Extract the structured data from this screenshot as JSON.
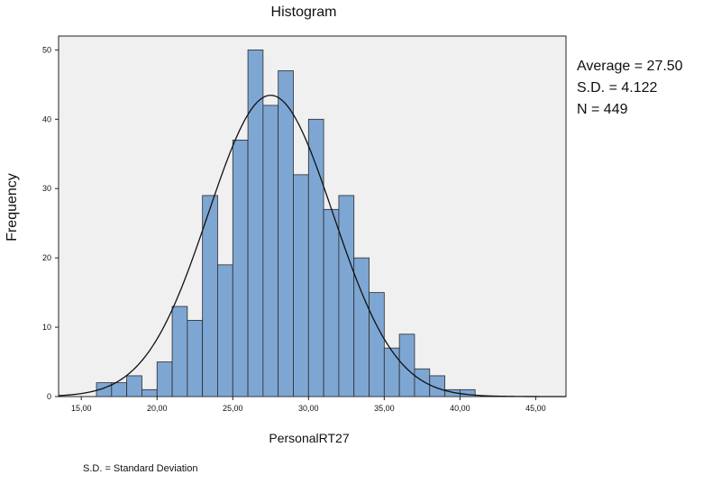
{
  "chart_data": {
    "type": "bar",
    "title": "Histogram",
    "xlabel": "PersonalRT27",
    "ylabel": "Frequency",
    "xlim": [
      13.5,
      47.0
    ],
    "ylim": [
      0,
      52
    ],
    "x_ticks": [
      {
        "value": 15,
        "label": "15,00"
      },
      {
        "value": 20,
        "label": "20,00"
      },
      {
        "value": 25,
        "label": "25,00"
      },
      {
        "value": 30,
        "label": "30,00"
      },
      {
        "value": 35,
        "label": "35,00"
      },
      {
        "value": 40,
        "label": "40,00"
      },
      {
        "value": 45,
        "label": "45,00"
      }
    ],
    "y_ticks": [
      0,
      10,
      20,
      30,
      40,
      50
    ],
    "bin_width": 1,
    "bin_starts": [
      16,
      17,
      18,
      19,
      20,
      21,
      22,
      23,
      24,
      25,
      26,
      27,
      28,
      29,
      30,
      31,
      32,
      33,
      34,
      35,
      36,
      37,
      38,
      39,
      40
    ],
    "values": [
      2,
      2,
      3,
      1,
      5,
      13,
      11,
      29,
      19,
      37,
      50,
      42,
      47,
      32,
      40,
      27,
      29,
      20,
      15,
      7,
      9,
      4,
      3,
      1,
      1
    ],
    "normal_curve": {
      "mean": 27.5,
      "sd": 4.122,
      "n": 449
    },
    "bar_color": "#7ea6d3",
    "plot_background": "#f0f0f0",
    "grid": false
  },
  "stats": {
    "average": "Average = 27.50",
    "sd": "S.D. = 4.122",
    "n": "N = 449"
  },
  "footnote": "S.D. = Standard Deviation"
}
